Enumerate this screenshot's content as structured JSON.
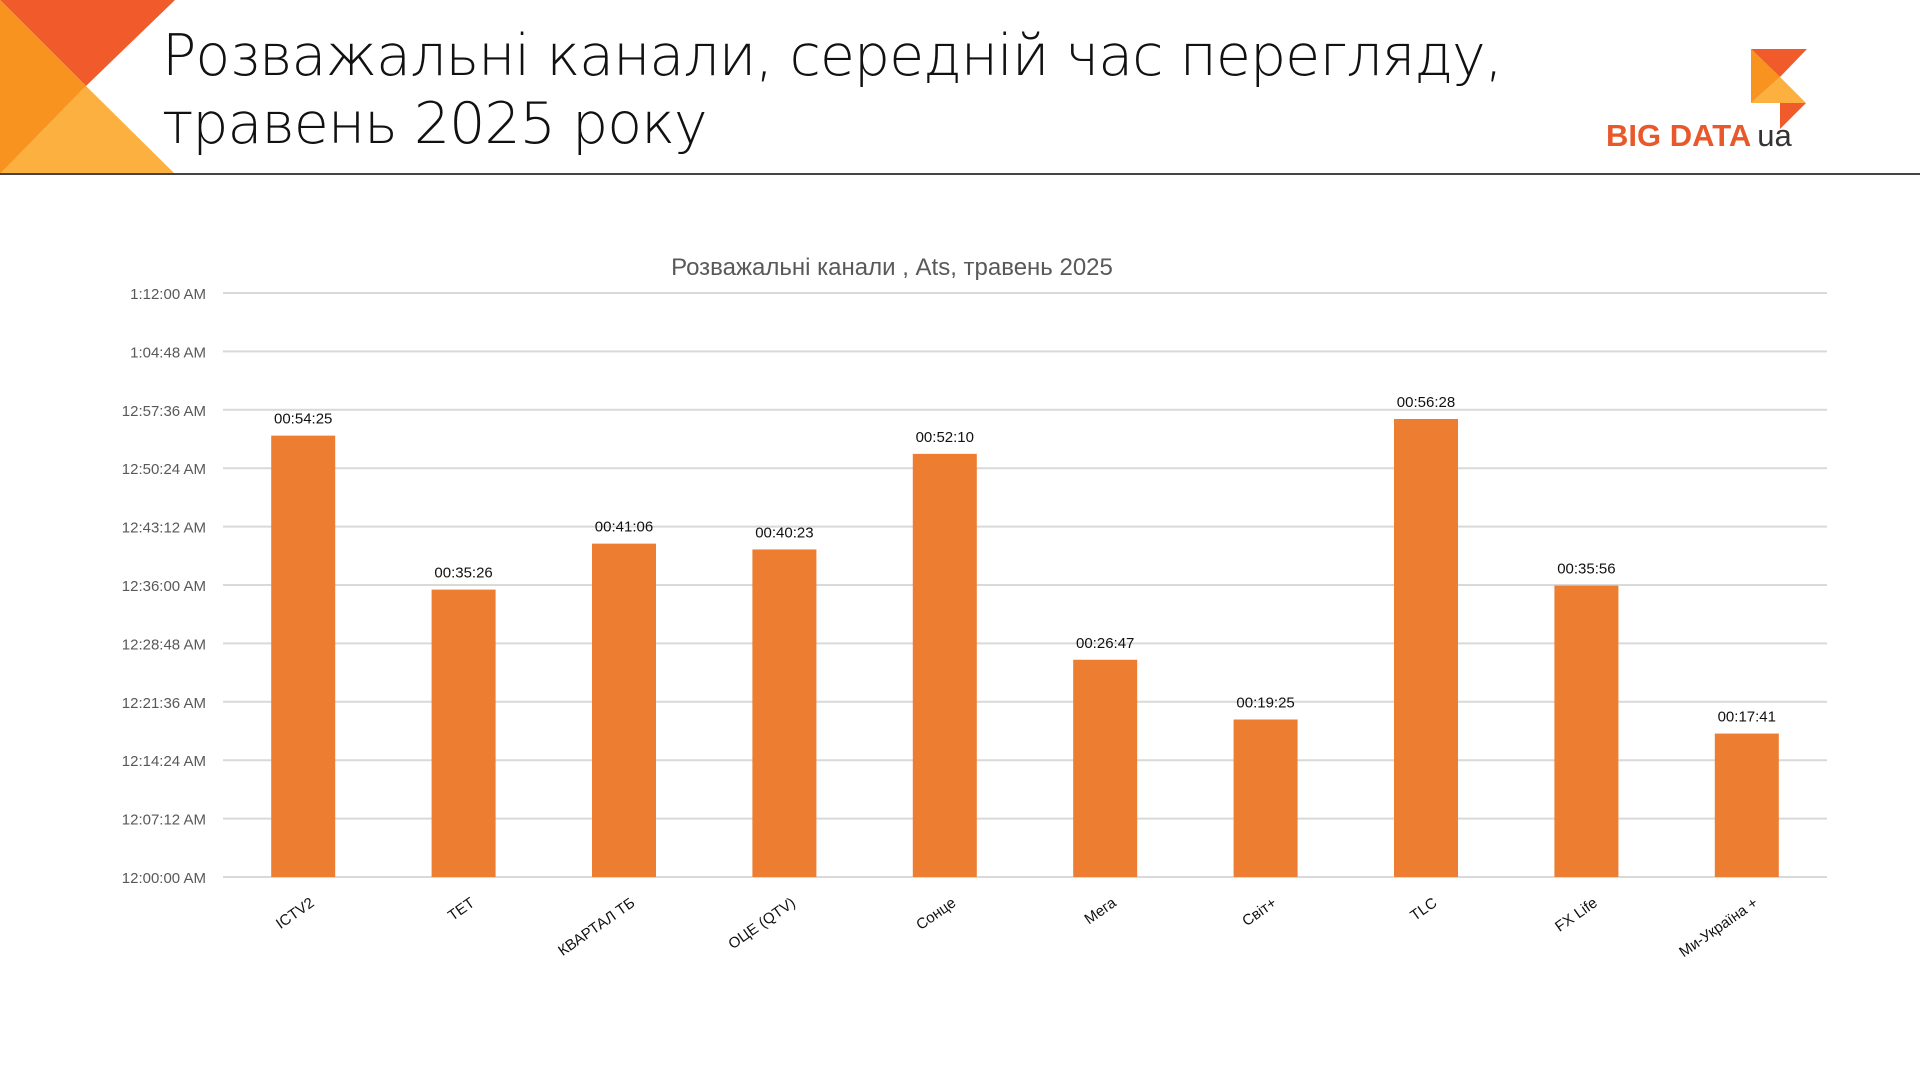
{
  "header": {
    "title_line1": "Розважальні канали, середній час перегляду,",
    "title_line2": "травень 2025 року",
    "logo_text": "BIG DATA",
    "logo_suffix": "ua"
  },
  "colors": {
    "bar": "#ED7D31",
    "accent_red": "#F15A2B",
    "accent_orange": "#F7931E",
    "accent_yellow": "#FBB040"
  },
  "chart_data": {
    "type": "bar",
    "title": "Розважальні канали , Ats, травень 2025",
    "xlabel": "",
    "ylabel": "",
    "ylim_seconds": [
      0,
      4320
    ],
    "y_ticks": [
      "12:00:00 AM",
      "12:07:12 AM",
      "12:14:24 AM",
      "12:21:36 AM",
      "12:28:48 AM",
      "12:36:00 AM",
      "12:43:12 AM",
      "12:50:24 AM",
      "12:57:36 AM",
      "1:04:48 AM",
      "1:12:00 AM"
    ],
    "grid": true,
    "categories": [
      "ICTV2",
      "ТЕТ",
      "КВАРТАЛ ТБ",
      "ОЦЕ (QTV)",
      "Сонце",
      "Мега",
      "Світ+",
      "TLC",
      "FX Life",
      "Ми-Україна +"
    ],
    "labels": [
      "00:54:25",
      "00:35:26",
      "00:41:06",
      "00:40:23",
      "00:52:10",
      "00:26:47",
      "00:19:25",
      "00:56:28",
      "00:35:56",
      "00:17:41"
    ],
    "values_seconds": [
      3265,
      2126,
      2466,
      2423,
      3130,
      1607,
      1165,
      3388,
      2156,
      1061
    ]
  }
}
